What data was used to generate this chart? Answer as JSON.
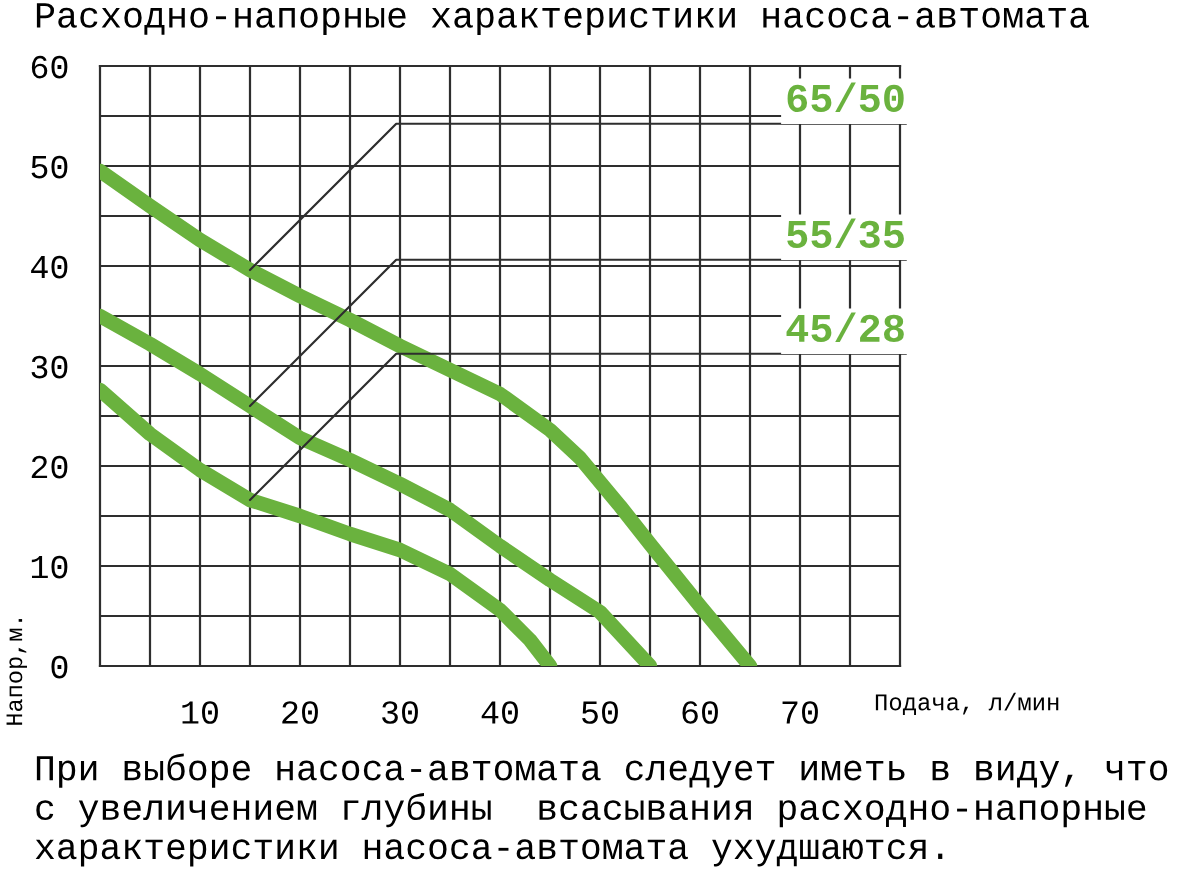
{
  "chart_data": {
    "type": "line",
    "title": "Расходно-напорные характеристики насоса-автомата",
    "xlabel": "Подача, л/мин",
    "ylabel": "Напор,м.",
    "annotations": [
      "При выборе насоса-автомата следует иметь в виду, что\nс увеличением глубины  всасывания расходно-напорные\nхарактеристики насоса-автомата ухудшаются."
    ],
    "xlim": [
      0,
      80
    ],
    "ylim": [
      0,
      60
    ],
    "xticks": [
      {
        "value": 5,
        "label": null
      },
      10,
      {
        "value": 15,
        "label": null
      },
      20,
      {
        "value": 25,
        "label": null
      },
      30,
      {
        "value": 35,
        "label": null
      },
      40,
      {
        "value": 45,
        "label": null
      },
      50,
      {
        "value": 55,
        "label": null
      },
      60,
      {
        "value": 65,
        "label": null
      },
      70,
      {
        "value": 75,
        "label": null
      }
    ],
    "yticks": [
      0,
      {
        "value": 5,
        "label": null
      },
      10,
      {
        "value": 15,
        "label": null
      },
      20,
      {
        "value": 25,
        "label": null
      },
      30,
      {
        "value": 35,
        "label": null
      },
      40,
      {
        "value": 45,
        "label": null
      },
      50,
      {
        "value": 55,
        "label": null
      },
      60
    ],
    "grid": true,
    "series": [
      {
        "name": "65/50",
        "color": "#6ab23e",
        "x": [
          0,
          5,
          10,
          15,
          20,
          25,
          30,
          35,
          40,
          45,
          48,
          52,
          55,
          60,
          65
        ],
        "values": [
          49.5,
          46,
          42.6,
          39.6,
          37,
          34.6,
          32,
          29.6,
          27.2,
          23.6,
          20.8,
          16,
          12.2,
          6,
          0
        ]
      },
      {
        "name": "55/35",
        "color": "#6ab23e",
        "x": [
          0,
          5,
          10,
          15,
          20,
          25,
          30,
          35,
          40,
          45,
          50,
          55
        ],
        "values": [
          35,
          32.2,
          29.2,
          26,
          22.8,
          20.6,
          18.2,
          15.6,
          12,
          8.6,
          5.4,
          0
        ]
      },
      {
        "name": "45/28",
        "color": "#6ab23e",
        "x": [
          0,
          5,
          10,
          15,
          20,
          25,
          30,
          35,
          40,
          43,
          45
        ],
        "values": [
          27.6,
          23.2,
          19.6,
          16.6,
          15,
          13.2,
          11.6,
          9.2,
          5.6,
          2.6,
          0
        ]
      }
    ]
  }
}
